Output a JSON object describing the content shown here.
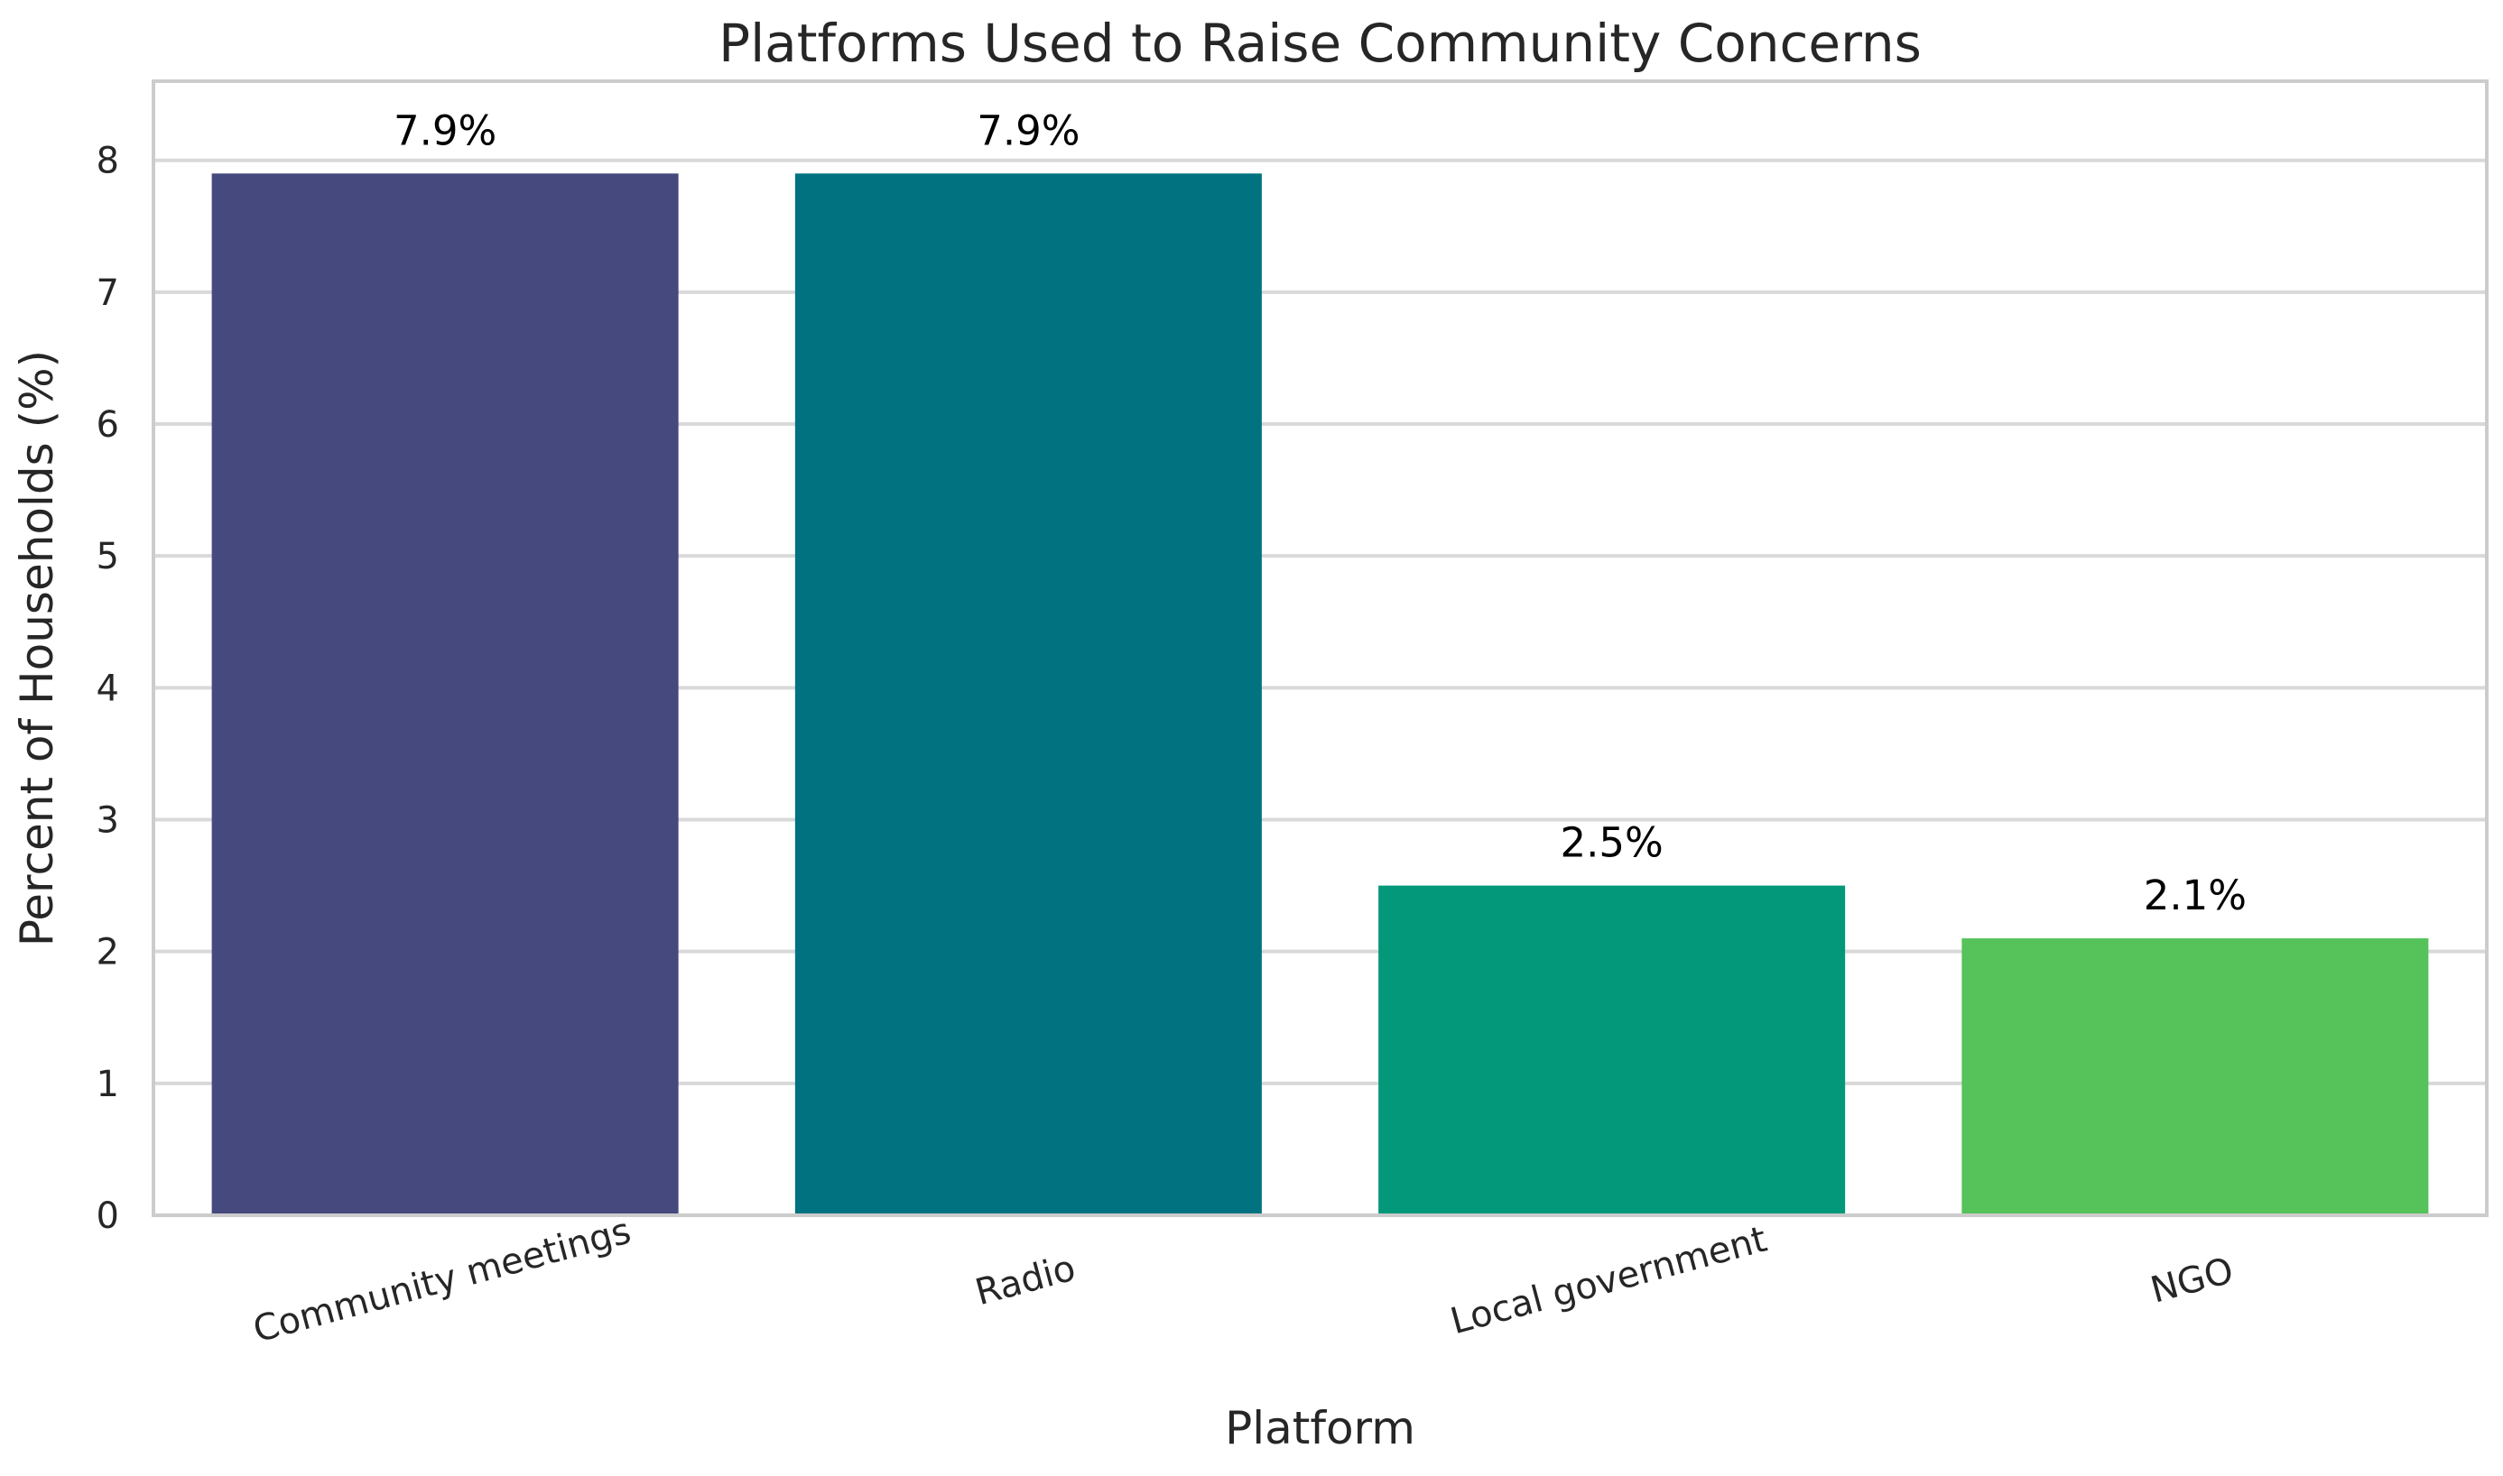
{
  "chart_data": {
    "type": "bar",
    "title": "Platforms Used to Raise Community Concerns",
    "xlabel": "Platform",
    "ylabel": "Percent of Households (%)",
    "categories": [
      "Community meetings",
      "Radio",
      "Local government",
      "NGO"
    ],
    "values": [
      7.9,
      7.9,
      2.5,
      2.1
    ],
    "value_labels": [
      "7.9%",
      "7.9%",
      "2.5%",
      "2.1%"
    ],
    "colors": [
      "#46497d",
      "#007280",
      "#039879",
      "#55c25a"
    ],
    "ylim": [
      0,
      8.6
    ],
    "yticks": [
      0,
      1,
      2,
      3,
      4,
      5,
      6,
      7,
      8
    ],
    "grid": "horizontal",
    "legend": "none"
  }
}
